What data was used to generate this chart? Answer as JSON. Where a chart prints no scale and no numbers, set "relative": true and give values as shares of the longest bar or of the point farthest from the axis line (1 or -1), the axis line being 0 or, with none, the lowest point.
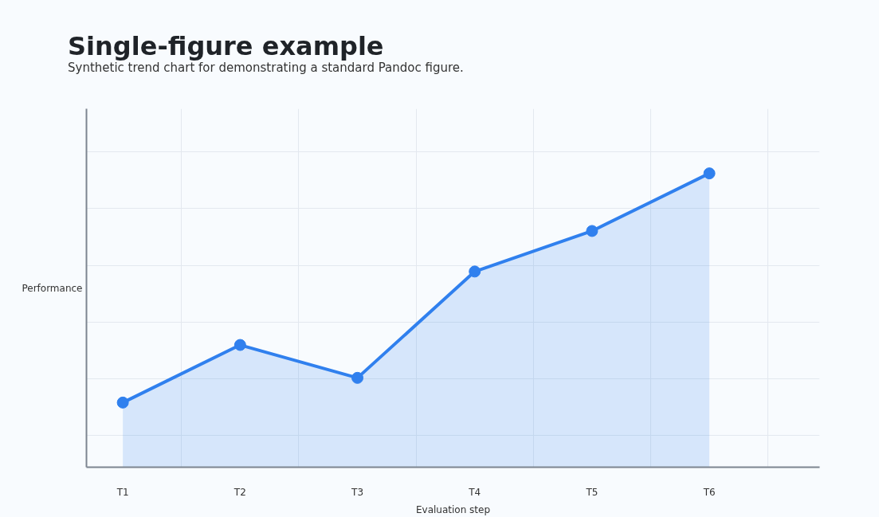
{
  "chart_data": {
    "type": "area",
    "title": "Single-figure example",
    "subtitle": "Synthetic trend chart for demonstrating a standard Pandoc figure.",
    "xlabel": "Evaluation step",
    "ylabel": "Performance",
    "categories": [
      "T1",
      "T2",
      "T3",
      "T4",
      "T5",
      "T6"
    ],
    "series": [
      {
        "color": "#3080ee",
        "values": [
          0.22,
          0.416,
          0.304,
          0.666,
          0.804,
          1
        ]
      }
    ],
    "relative": true,
    "grid": true,
    "marker": "circle",
    "line_style": "solid"
  }
}
